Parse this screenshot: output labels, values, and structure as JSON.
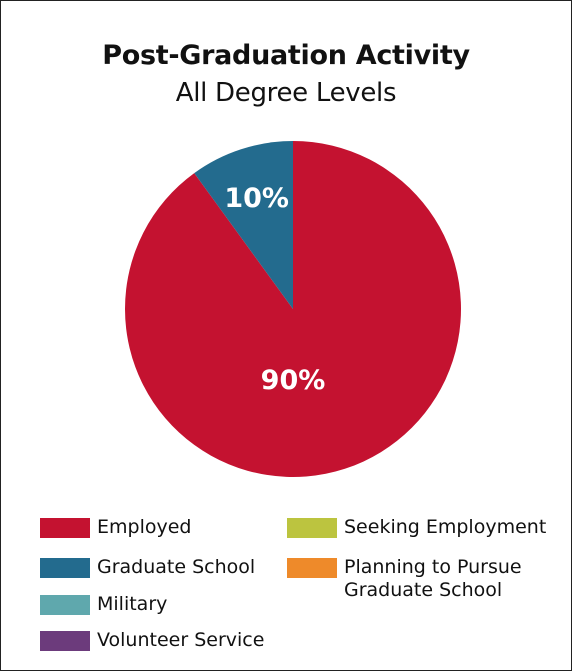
{
  "chart_data": {
    "type": "pie",
    "title": "Post-Graduation Activity",
    "subtitle": "All Degree Levels",
    "slices": [
      {
        "label": "Employed",
        "value": 90,
        "display": "90%",
        "color": "#c41230"
      },
      {
        "label": "Graduate School",
        "value": 10,
        "display": "10%",
        "color": "#236b8e"
      },
      {
        "label": "Military",
        "value": 0,
        "display": "",
        "color": "#5fa8ad"
      },
      {
        "label": "Volunteer Service",
        "value": 0,
        "display": "",
        "color": "#6c3b7c"
      },
      {
        "label": "Seeking Employment",
        "value": 0,
        "display": "",
        "color": "#bcc43f"
      },
      {
        "label": "Planning to Pursue\nGraduate School",
        "value": 0,
        "display": "",
        "color": "#ee8a2a"
      }
    ],
    "legend_placement": "bottom"
  }
}
